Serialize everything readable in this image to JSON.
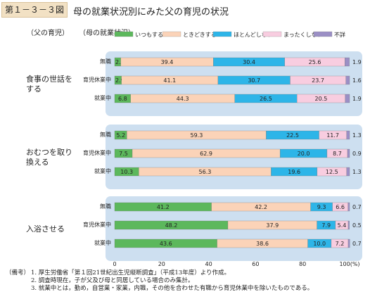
{
  "figure_label": "第１－３－３図",
  "title": "母の就業状況別にみた父の育児の状況",
  "column_headers": {
    "father": "（父の育児）",
    "mother": "（母の就業状況）"
  },
  "chart_data": {
    "type": "bar",
    "orientation": "horizontal",
    "stacked": true,
    "unit": "%",
    "xlim": [
      0,
      100
    ],
    "xticks": [
      "0",
      "20",
      "40",
      "60",
      "80",
      "100(%)"
    ],
    "legend": [
      "いつもする",
      "ときどきする",
      "ほとんどしない",
      "まったくしない",
      "不詳"
    ],
    "colors": [
      "#5cb85c",
      "#fbd3b8",
      "#2db5e8",
      "#f8cde0",
      "#9b8fc5"
    ],
    "groups": [
      {
        "label": "食事の世話を\nする",
        "rows": [
          {
            "category": "無職",
            "values": [
              2.6,
              39.4,
              30.4,
              25.6,
              1.9
            ]
          },
          {
            "category": "育児休業中",
            "values": [
              2.9,
              41.1,
              30.7,
              23.7,
              1.6
            ]
          },
          {
            "category": "就業中",
            "values": [
              6.8,
              44.3,
              26.5,
              20.5,
              1.9
            ]
          }
        ]
      },
      {
        "label": "おむつを取り\n換える",
        "rows": [
          {
            "category": "無職",
            "values": [
              5.2,
              59.3,
              22.5,
              11.7,
              1.3
            ]
          },
          {
            "category": "育児休業中",
            "values": [
              7.5,
              62.9,
              20.0,
              8.7,
              0.9
            ]
          },
          {
            "category": "就業中",
            "values": [
              10.3,
              56.3,
              19.6,
              12.5,
              1.3
            ]
          }
        ]
      },
      {
        "label": "入浴させる",
        "rows": [
          {
            "category": "無職",
            "values": [
              41.2,
              42.2,
              9.3,
              6.6,
              0.7
            ]
          },
          {
            "category": "育児休業中",
            "values": [
              48.2,
              37.9,
              7.9,
              5.4,
              0.5
            ]
          },
          {
            "category": "就業中",
            "values": [
              43.6,
              38.6,
              10.0,
              7.2,
              0.7
            ]
          }
        ]
      }
    ]
  },
  "notes": [
    {
      "prefix": "（備考）",
      "text": "1.  厚生労働省「第１回21世紀出生児縦断調査」（平成13年度）より作成。"
    },
    {
      "prefix": "",
      "text": "2.  調査時現在，子が父及び母と同居している場合のみ集計。"
    },
    {
      "prefix": "",
      "text": "3.  就業中とは，勤め，自営業・家業，内職，その他を合わせた有職から育児休業中を除いたものである。"
    }
  ]
}
